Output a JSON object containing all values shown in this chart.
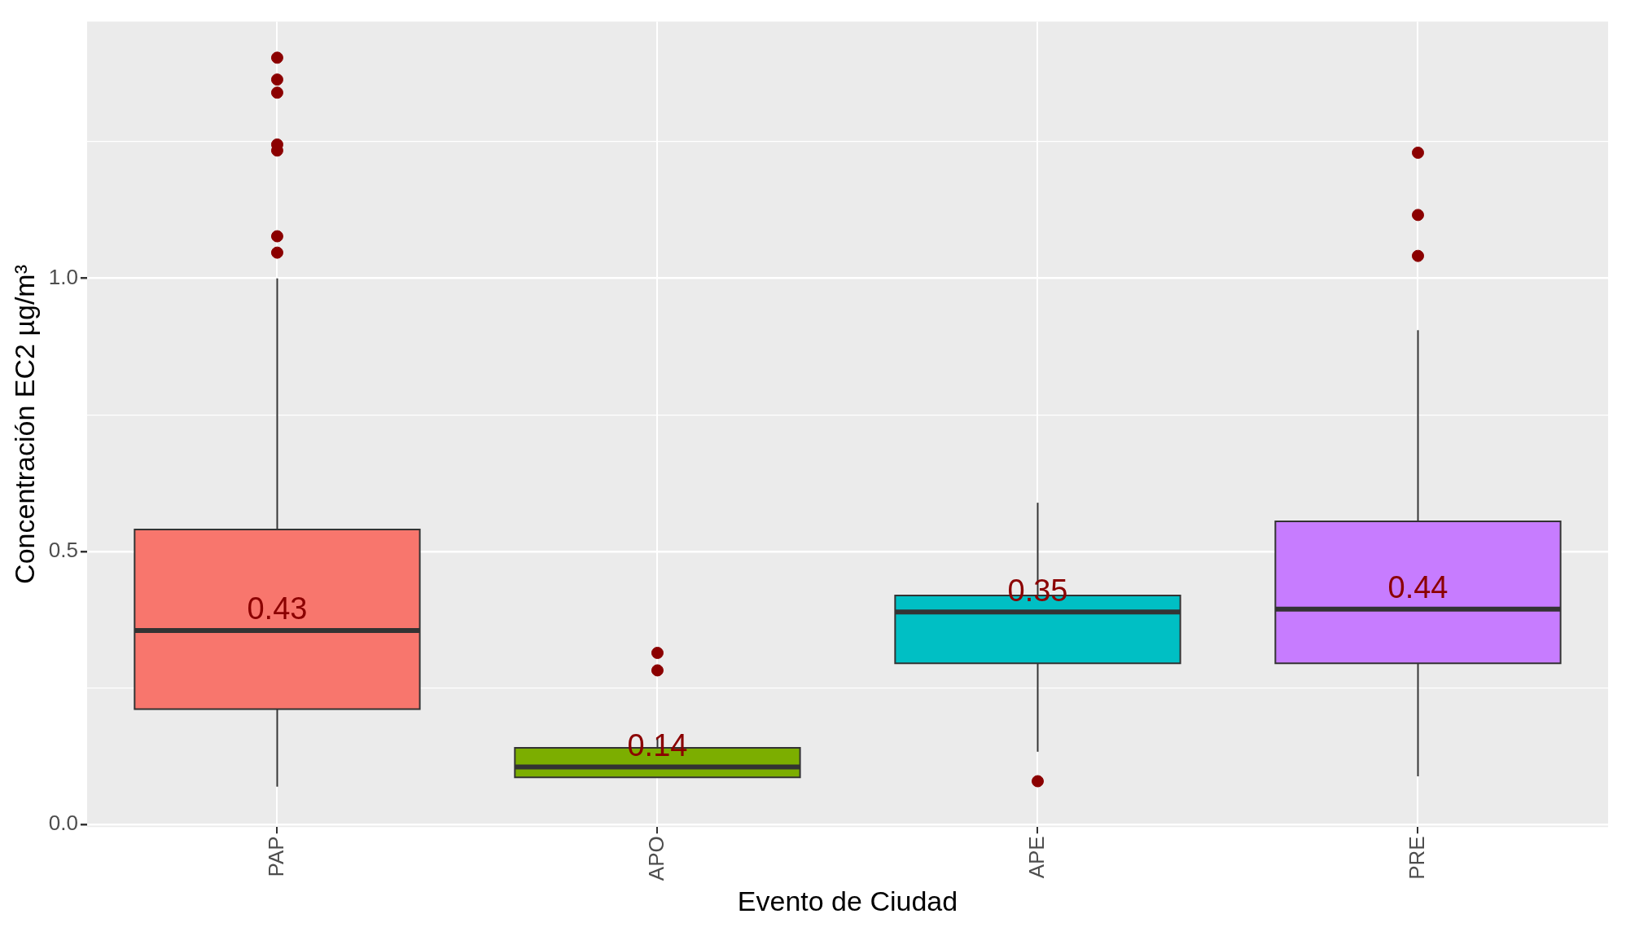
{
  "chart_data": {
    "type": "box",
    "xlabel": "Evento de Ciudad",
    "ylabel": "Concentración EC2 µg/m³",
    "categories": [
      "PAP",
      "APO",
      "APE",
      "PRE"
    ],
    "colors": [
      "#f8766d",
      "#7cae00",
      "#00bfc4",
      "#c77cff"
    ],
    "boxes": [
      {
        "low": 0.069,
        "q1": 0.211,
        "median": 0.355,
        "q3": 0.54,
        "high": 1.0,
        "outliers": [
          1.404,
          1.364,
          1.34,
          1.245,
          1.234,
          1.077,
          1.047
        ]
      },
      {
        "low": 0.086,
        "q1": 0.086,
        "median": 0.105,
        "q3": 0.14,
        "high": 0.159,
        "outliers": [
          0.314,
          0.282
        ]
      },
      {
        "low": 0.133,
        "q1": 0.295,
        "median": 0.389,
        "q3": 0.419,
        "high": 0.589,
        "outliers": [
          0.079
        ]
      },
      {
        "low": 0.088,
        "q1": 0.295,
        "median": 0.394,
        "q3": 0.555,
        "high": 0.905,
        "outliers": [
          1.23,
          1.116,
          1.041
        ]
      }
    ],
    "ylim": [
      -0.005,
      1.47
    ],
    "yticks": [
      {
        "value": 0,
        "label": "0.0"
      },
      {
        "value": 0.25,
        "label": null
      },
      {
        "value": 0.5,
        "label": "0.5"
      },
      {
        "value": 0.75,
        "label": null
      },
      {
        "value": 1,
        "label": "1.0"
      },
      {
        "value": 1.25,
        "label": null
      }
    ],
    "grid": true,
    "annotations": [
      "0.43",
      "0.14",
      "0.35",
      "0.44"
    ]
  }
}
